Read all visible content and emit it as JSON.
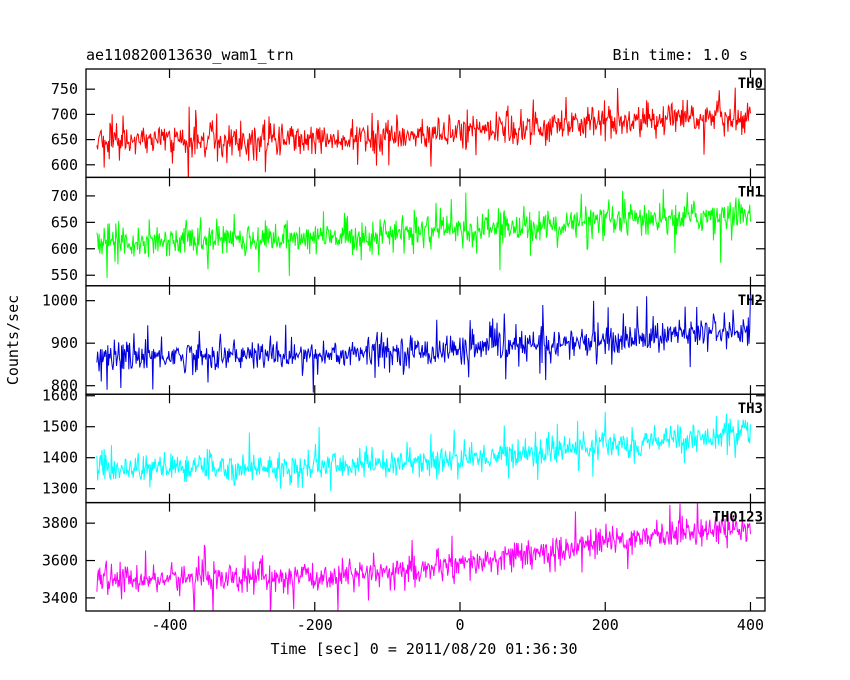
{
  "chart_data": {
    "type": "line",
    "header": {
      "title": "ae110820013630_wam1_trn",
      "bin_time": "Bin time: 1.0 s"
    },
    "xlabel": "Time [sec] 0 = 2011/08/20 01:36:30",
    "ylabel": "Counts/sec",
    "xlim": [
      -515,
      420
    ],
    "x_ticks": [
      -400,
      -200,
      0,
      200,
      400
    ],
    "x_data_range": [
      -500,
      400
    ],
    "bin_time": 1.0,
    "grid": false,
    "legend": "none",
    "series": [
      {
        "name": "TH0",
        "color": "#ff0000",
        "ylim": [
          575,
          790
        ],
        "y_ticks": [
          600,
          650,
          700,
          750
        ],
        "baseline": [
          [
            -500,
            650
          ],
          [
            -200,
            650
          ],
          [
            0,
            665
          ],
          [
            200,
            685
          ],
          [
            400,
            695
          ]
        ],
        "noise": 28,
        "spike_chance": 0.04,
        "spike": 45
      },
      {
        "name": "TH1",
        "color": "#00ff00",
        "ylim": [
          530,
          735
        ],
        "y_ticks": [
          550,
          600,
          650,
          700
        ],
        "baseline": [
          [
            -500,
            615
          ],
          [
            -200,
            620
          ],
          [
            0,
            635
          ],
          [
            200,
            650
          ],
          [
            400,
            668
          ]
        ],
        "noise": 25,
        "spike_chance": 0.04,
        "spike": 40
      },
      {
        "name": "TH2",
        "color": "#0000dd",
        "ylim": [
          780,
          1035
        ],
        "y_ticks": [
          800,
          900,
          1000
        ],
        "baseline": [
          [
            -500,
            870
          ],
          [
            -200,
            872
          ],
          [
            0,
            885
          ],
          [
            200,
            905
          ],
          [
            400,
            935
          ]
        ],
        "noise": 30,
        "spike_chance": 0.04,
        "spike": 50
      },
      {
        "name": "TH3",
        "color": "#00ffff",
        "ylim": [
          1255,
          1605
        ],
        "y_ticks": [
          1300,
          1400,
          1500,
          1600
        ],
        "baseline": [
          [
            -500,
            1365
          ],
          [
            -200,
            1370
          ],
          [
            0,
            1395
          ],
          [
            200,
            1440
          ],
          [
            400,
            1480
          ]
        ],
        "noise": 38,
        "spike_chance": 0.04,
        "spike": 60
      },
      {
        "name": "TH0123",
        "color": "#ff00ff",
        "ylim": [
          3330,
          3910
        ],
        "y_ticks": [
          3400,
          3600,
          3800
        ],
        "baseline": [
          [
            -500,
            3500
          ],
          [
            -200,
            3510
          ],
          [
            0,
            3570
          ],
          [
            200,
            3700
          ],
          [
            400,
            3790
          ]
        ],
        "noise": 65,
        "spike_chance": 0.04,
        "spike": 100
      }
    ]
  }
}
